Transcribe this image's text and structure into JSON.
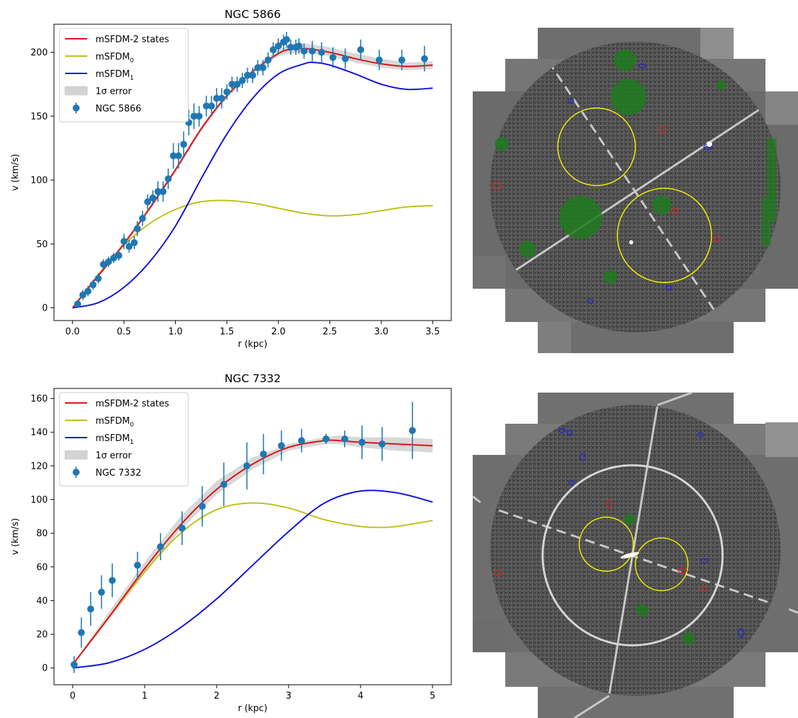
{
  "chart_data": [
    {
      "type": "line",
      "title": "NGC 5866",
      "xlabel": "r (kpc)",
      "ylabel": "v (km/s)",
      "xlim": [
        -0.18,
        3.68
      ],
      "ylim": [
        -10,
        222
      ],
      "xticks": [
        0.0,
        0.5,
        1.0,
        1.5,
        2.0,
        2.5,
        3.0,
        3.5
      ],
      "xtick_labels": [
        "0.0",
        "0.5",
        "1.0",
        "1.5",
        "2.0",
        "2.5",
        "3.0",
        "3.5"
      ],
      "yticks": [
        0,
        50,
        100,
        150,
        200
      ],
      "ytick_labels": [
        "0",
        "50",
        "100",
        "150",
        "200"
      ],
      "legend": "top-left",
      "legend_entries": [
        "mSFDM-2 states",
        "mSFDM",
        "mSFDM",
        "1σ error",
        "NGC 5866"
      ],
      "legend_subscripts": [
        "",
        "0",
        "1",
        "",
        ""
      ],
      "series": [
        {
          "name": "mSFDM-2 states",
          "color": "#e01010",
          "x": [
            0,
            0.25,
            0.5,
            0.75,
            1.0,
            1.25,
            1.5,
            1.75,
            2.0,
            2.1,
            2.25,
            2.5,
            2.75,
            3.0,
            3.25,
            3.5
          ],
          "y": [
            0,
            25,
            50,
            78,
            108,
            140,
            166,
            185,
            199,
            202,
            203,
            200,
            195,
            191,
            189,
            190
          ]
        },
        {
          "name": "mSFDM0",
          "color": "#bfbf1a",
          "x": [
            0,
            0.25,
            0.5,
            0.75,
            1.0,
            1.25,
            1.5,
            1.75,
            2.0,
            2.25,
            2.5,
            2.75,
            3.0,
            3.25,
            3.5
          ],
          "y": [
            0,
            26,
            49,
            66,
            77,
            83,
            84,
            82,
            78,
            74,
            72,
            73,
            76,
            79,
            80
          ]
        },
        {
          "name": "mSFDM1",
          "color": "#1010e0",
          "x": [
            0,
            0.25,
            0.5,
            0.75,
            1.0,
            1.25,
            1.5,
            1.75,
            2.0,
            2.25,
            2.35,
            2.5,
            2.75,
            3.0,
            3.25,
            3.5
          ],
          "y": [
            0,
            4,
            16,
            36,
            64,
            101,
            136,
            164,
            183,
            191,
            192,
            190,
            183,
            175,
            171,
            172
          ]
        }
      ],
      "error_band": {
        "name": "1σ error",
        "color": "#a9a9a9",
        "x": [
          0,
          0.25,
          0.5,
          0.75,
          1.0,
          1.25,
          1.5,
          1.75,
          2.0,
          2.1,
          2.25,
          2.5,
          2.75,
          3.0,
          3.25,
          3.5
        ],
        "lower": [
          0,
          24,
          48,
          76,
          106,
          138,
          164,
          183,
          197,
          199,
          200,
          197,
          192,
          188,
          186,
          187
        ],
        "upper": [
          0,
          26,
          52,
          80,
          110,
          142,
          168,
          187,
          202,
          205,
          207,
          204,
          199,
          195,
          192,
          193
        ]
      },
      "points": {
        "name": "NGC 5866",
        "color": "#1f77b4",
        "x": [
          0.05,
          0.1,
          0.15,
          0.2,
          0.25,
          0.3,
          0.35,
          0.4,
          0.45,
          0.5,
          0.55,
          0.6,
          0.63,
          0.68,
          0.73,
          0.78,
          0.83,
          0.88,
          0.93,
          0.98,
          1.03,
          1.08,
          1.13,
          1.18,
          1.23,
          1.3,
          1.35,
          1.4,
          1.45,
          1.5,
          1.55,
          1.6,
          1.65,
          1.7,
          1.75,
          1.8,
          1.85,
          1.9,
          1.95,
          2.0,
          2.05,
          2.08,
          2.12,
          2.17,
          2.2,
          2.25,
          2.33,
          2.42,
          2.53,
          2.65,
          2.8,
          2.98,
          3.2,
          3.42
        ],
        "y": [
          3,
          10,
          13,
          18,
          23,
          34,
          36,
          39,
          41,
          52,
          48,
          51,
          62,
          70,
          83,
          86,
          91,
          91,
          101,
          119,
          119,
          128,
          145,
          150,
          150,
          158,
          158,
          164,
          164,
          169,
          175,
          175,
          178,
          182,
          182,
          188,
          188,
          194,
          202,
          205,
          208,
          210,
          204,
          204,
          205,
          201,
          201,
          200,
          196,
          195,
          202,
          194,
          194,
          195
        ],
        "err": [
          2,
          4,
          4,
          4,
          4,
          4,
          4,
          4,
          4,
          6,
          5,
          5,
          6,
          6,
          6,
          6,
          8,
          8,
          8,
          10,
          10,
          10,
          10,
          10,
          8,
          8,
          8,
          8,
          8,
          6,
          6,
          6,
          6,
          6,
          6,
          6,
          6,
          6,
          6,
          6,
          6,
          6,
          6,
          6,
          6,
          6,
          8,
          8,
          8,
          8,
          8,
          8,
          8,
          10
        ]
      }
    },
    {
      "type": "line",
      "title": "NGC 7332",
      "xlabel": "r (kpc)",
      "ylabel": "v (km/s)",
      "xlim": [
        -0.26,
        5.26
      ],
      "ylim": [
        -10,
        166
      ],
      "xticks": [
        0,
        1,
        2,
        3,
        4,
        5
      ],
      "xtick_labels": [
        "0",
        "1",
        "2",
        "3",
        "4",
        "5"
      ],
      "yticks": [
        0,
        20,
        40,
        60,
        80,
        100,
        120,
        140,
        160
      ],
      "ytick_labels": [
        "0",
        "20",
        "40",
        "60",
        "80",
        "100",
        "120",
        "140",
        "160"
      ],
      "legend": "top-left",
      "legend_entries": [
        "mSFDM-2 states",
        "mSFDM",
        "mSFDM",
        "1σ error",
        "NGC 7332"
      ],
      "legend_subscripts": [
        "",
        "0",
        "1",
        "",
        ""
      ],
      "series": [
        {
          "name": "mSFDM-2 states",
          "color": "#e01010",
          "x": [
            0,
            0.5,
            1.0,
            1.5,
            2.0,
            2.5,
            3.0,
            3.5,
            3.7,
            4.0,
            4.5,
            5.0
          ],
          "y": [
            2,
            30,
            59,
            85,
            106,
            121,
            131,
            135,
            135,
            134,
            133,
            132
          ]
        },
        {
          "name": "mSFDM0",
          "color": "#bfbf1a",
          "x": [
            0,
            0.5,
            1.0,
            1.5,
            2.0,
            2.5,
            3.0,
            3.5,
            4.0,
            4.3,
            4.5,
            5.0
          ],
          "y": [
            2,
            30,
            57,
            80,
            94,
            98,
            95,
            88,
            84,
            83.5,
            84,
            87.5
          ]
        },
        {
          "name": "mSFDM1",
          "color": "#1010e0",
          "x": [
            0,
            0.5,
            1.0,
            1.5,
            2.0,
            2.5,
            3.0,
            3.5,
            4.0,
            4.5,
            5.0
          ],
          "y": [
            0,
            3,
            11,
            24,
            41,
            61,
            81,
            98,
            105,
            104,
            98.5
          ]
        }
      ],
      "error_band": {
        "name": "1σ error",
        "color": "#a9a9a9",
        "x": [
          0,
          0.5,
          1.0,
          1.5,
          2.0,
          2.5,
          3.0,
          3.5,
          3.7,
          4.0,
          4.5,
          5.0
        ],
        "lower": [
          2,
          28,
          56,
          82,
          103,
          118,
          129,
          133,
          133,
          131,
          129,
          128
        ],
        "upper": [
          2,
          33,
          63,
          90,
          111,
          125,
          133,
          137,
          138,
          137,
          137,
          136
        ]
      },
      "points": {
        "name": "NGC 7332",
        "color": "#1f77b4",
        "x": [
          0.02,
          0.12,
          0.25,
          0.4,
          0.55,
          0.9,
          1.22,
          1.52,
          1.8,
          2.1,
          2.42,
          2.65,
          2.9,
          3.18,
          3.52,
          3.78,
          4.02,
          4.3,
          4.72
        ],
        "y": [
          2,
          21,
          35,
          45,
          52,
          61,
          72,
          83,
          96,
          109,
          120,
          127,
          132,
          135,
          136,
          136,
          134,
          133,
          141
        ],
        "err": [
          5,
          9,
          10,
          10,
          10,
          8,
          8,
          10,
          12,
          13,
          14,
          12,
          9,
          7,
          3,
          5,
          10,
          10,
          17
        ]
      }
    }
  ]
}
